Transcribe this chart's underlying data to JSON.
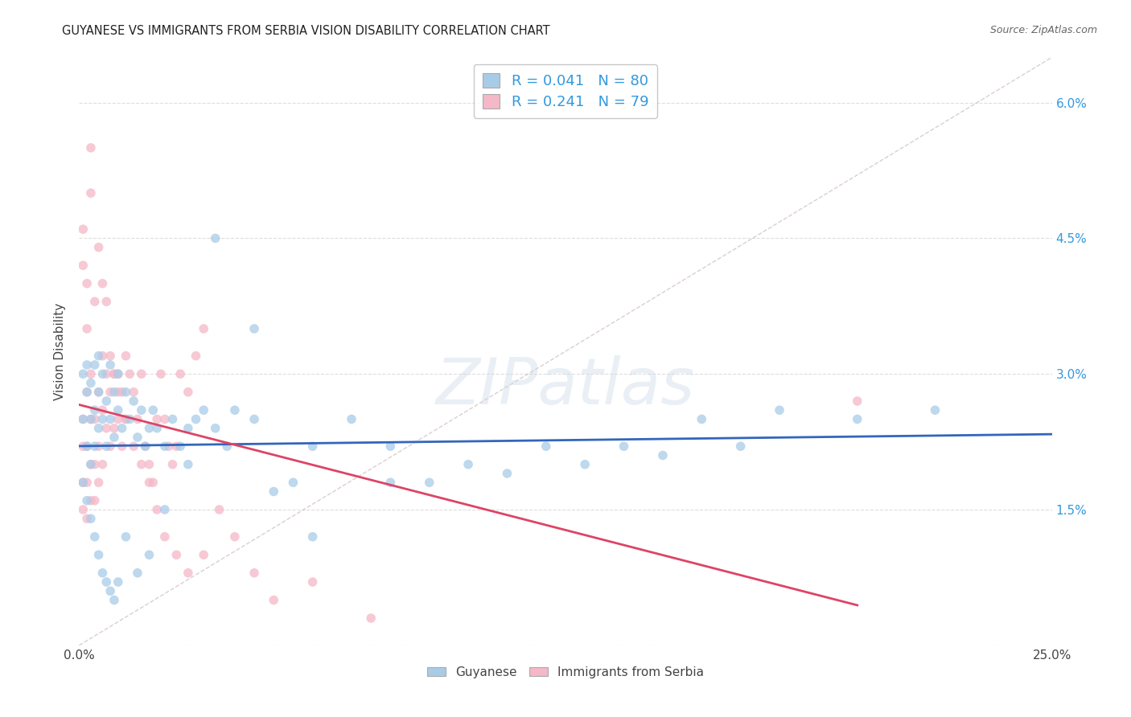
{
  "title": "GUYANESE VS IMMIGRANTS FROM SERBIA VISION DISABILITY CORRELATION CHART",
  "source": "Source: ZipAtlas.com",
  "ylabel": "Vision Disability",
  "xlim": [
    0.0,
    0.25
  ],
  "ylim": [
    0.0,
    0.065
  ],
  "xtick_vals": [
    0.0,
    0.05,
    0.1,
    0.15,
    0.2,
    0.25
  ],
  "xtick_labels": [
    "0.0%",
    "",
    "",
    "",
    "",
    "25.0%"
  ],
  "ytick_vals": [
    0.0,
    0.015,
    0.03,
    0.045,
    0.06
  ],
  "ytick_labels_right": [
    "",
    "1.5%",
    "3.0%",
    "4.5%",
    "6.0%"
  ],
  "blue_color": "#a8cce8",
  "pink_color": "#f4b8c8",
  "blue_line_color": "#3366bb",
  "pink_line_color": "#dd4466",
  "diagonal_color": "#ccbbbb",
  "legend_label_blue": "Guyanese",
  "legend_label_pink": "Immigrants from Serbia",
  "watermark": "ZIPatlas",
  "blue_x": [
    0.001,
    0.001,
    0.002,
    0.002,
    0.002,
    0.003,
    0.003,
    0.003,
    0.004,
    0.004,
    0.004,
    0.005,
    0.005,
    0.005,
    0.006,
    0.006,
    0.007,
    0.007,
    0.008,
    0.008,
    0.009,
    0.009,
    0.01,
    0.01,
    0.011,
    0.012,
    0.013,
    0.014,
    0.015,
    0.016,
    0.017,
    0.018,
    0.019,
    0.02,
    0.022,
    0.024,
    0.026,
    0.028,
    0.03,
    0.032,
    0.035,
    0.038,
    0.04,
    0.045,
    0.05,
    0.055,
    0.06,
    0.07,
    0.08,
    0.09,
    0.1,
    0.11,
    0.12,
    0.13,
    0.14,
    0.15,
    0.16,
    0.17,
    0.18,
    0.2,
    0.001,
    0.002,
    0.003,
    0.004,
    0.005,
    0.006,
    0.007,
    0.008,
    0.009,
    0.01,
    0.012,
    0.015,
    0.018,
    0.022,
    0.028,
    0.035,
    0.045,
    0.06,
    0.08,
    0.22
  ],
  "blue_y": [
    0.025,
    0.03,
    0.022,
    0.028,
    0.031,
    0.02,
    0.025,
    0.029,
    0.022,
    0.026,
    0.031,
    0.024,
    0.028,
    0.032,
    0.025,
    0.03,
    0.022,
    0.027,
    0.025,
    0.031,
    0.028,
    0.023,
    0.03,
    0.026,
    0.024,
    0.028,
    0.025,
    0.027,
    0.023,
    0.026,
    0.022,
    0.024,
    0.026,
    0.024,
    0.022,
    0.025,
    0.022,
    0.024,
    0.025,
    0.026,
    0.024,
    0.022,
    0.026,
    0.025,
    0.017,
    0.018,
    0.022,
    0.025,
    0.022,
    0.018,
    0.02,
    0.019,
    0.022,
    0.02,
    0.022,
    0.021,
    0.025,
    0.022,
    0.026,
    0.025,
    0.018,
    0.016,
    0.014,
    0.012,
    0.01,
    0.008,
    0.007,
    0.006,
    0.005,
    0.007,
    0.012,
    0.008,
    0.01,
    0.015,
    0.02,
    0.045,
    0.035,
    0.012,
    0.018,
    0.026
  ],
  "pink_x": [
    0.001,
    0.001,
    0.001,
    0.001,
    0.002,
    0.002,
    0.002,
    0.002,
    0.003,
    0.003,
    0.003,
    0.003,
    0.004,
    0.004,
    0.004,
    0.005,
    0.005,
    0.005,
    0.006,
    0.006,
    0.006,
    0.007,
    0.007,
    0.008,
    0.008,
    0.009,
    0.009,
    0.01,
    0.01,
    0.011,
    0.011,
    0.012,
    0.012,
    0.013,
    0.014,
    0.015,
    0.016,
    0.017,
    0.018,
    0.019,
    0.02,
    0.021,
    0.022,
    0.023,
    0.024,
    0.025,
    0.026,
    0.028,
    0.03,
    0.032,
    0.001,
    0.001,
    0.002,
    0.002,
    0.003,
    0.003,
    0.004,
    0.005,
    0.006,
    0.007,
    0.008,
    0.009,
    0.01,
    0.012,
    0.014,
    0.016,
    0.018,
    0.02,
    0.022,
    0.025,
    0.028,
    0.032,
    0.036,
    0.04,
    0.045,
    0.05,
    0.06,
    0.075,
    0.2
  ],
  "pink_y": [
    0.025,
    0.022,
    0.018,
    0.015,
    0.028,
    0.022,
    0.018,
    0.014,
    0.03,
    0.025,
    0.02,
    0.016,
    0.025,
    0.02,
    0.016,
    0.028,
    0.022,
    0.018,
    0.032,
    0.026,
    0.02,
    0.03,
    0.024,
    0.028,
    0.022,
    0.03,
    0.024,
    0.03,
    0.025,
    0.028,
    0.022,
    0.032,
    0.025,
    0.03,
    0.028,
    0.025,
    0.03,
    0.022,
    0.02,
    0.018,
    0.025,
    0.03,
    0.025,
    0.022,
    0.02,
    0.022,
    0.03,
    0.028,
    0.032,
    0.035,
    0.042,
    0.046,
    0.04,
    0.035,
    0.055,
    0.05,
    0.038,
    0.044,
    0.04,
    0.038,
    0.032,
    0.03,
    0.028,
    0.025,
    0.022,
    0.02,
    0.018,
    0.015,
    0.012,
    0.01,
    0.008,
    0.01,
    0.015,
    0.012,
    0.008,
    0.005,
    0.007,
    0.003,
    0.027
  ]
}
